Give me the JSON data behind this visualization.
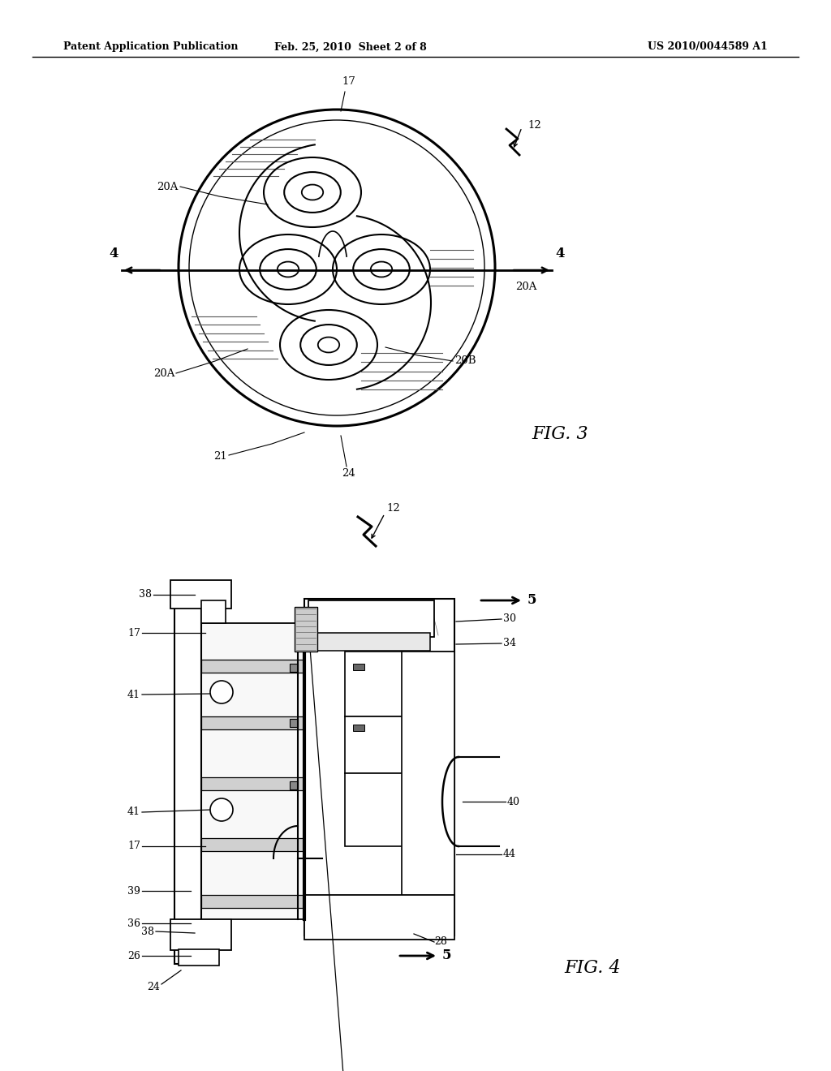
{
  "bg_color": "#ffffff",
  "header_left": "Patent Application Publication",
  "header_mid": "Feb. 25, 2010  Sheet 2 of 8",
  "header_right": "US 2010/0044589 A1",
  "fig3_label": "FIG. 3",
  "fig4_label": "FIG. 4"
}
